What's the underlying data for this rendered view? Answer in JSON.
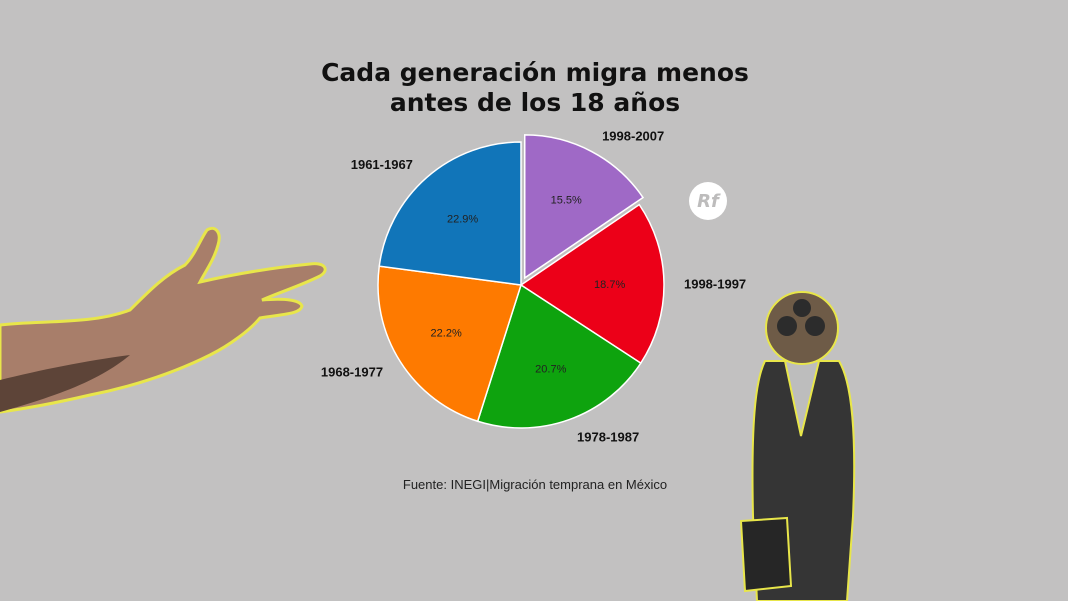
{
  "title": {
    "line1": "Cada generación migra menos",
    "line2": "antes de los 18 años"
  },
  "source": "Fuente: INEGI|Migración temprana en México",
  "logo_text": "Rf",
  "colors": {
    "background": "#c2c1c1",
    "outline": "#e8e64a"
  },
  "chart_data": {
    "type": "pie",
    "title": "Cada generación migra menos antes de los 18 años",
    "start_angle_deg": 0,
    "direction": "clockwise",
    "exploded": "1998-2007",
    "slices": [
      {
        "label": "1998-2007",
        "value": 15.5,
        "value_label": "15.5%",
        "color": "#9f69c6"
      },
      {
        "label": "1998-1997",
        "value": 18.7,
        "value_label": "18.7%",
        "color": "#ec0018"
      },
      {
        "label": "1978-1987",
        "value": 20.7,
        "value_label": "20.7%",
        "color": "#0ea30e"
      },
      {
        "label": "1968-1977",
        "value": 22.2,
        "value_label": "22.2%",
        "color": "#fe7a00"
      },
      {
        "label": "1961-1967",
        "value": 22.9,
        "value_label": "22.9%",
        "color": "#1175b9"
      }
    ]
  }
}
